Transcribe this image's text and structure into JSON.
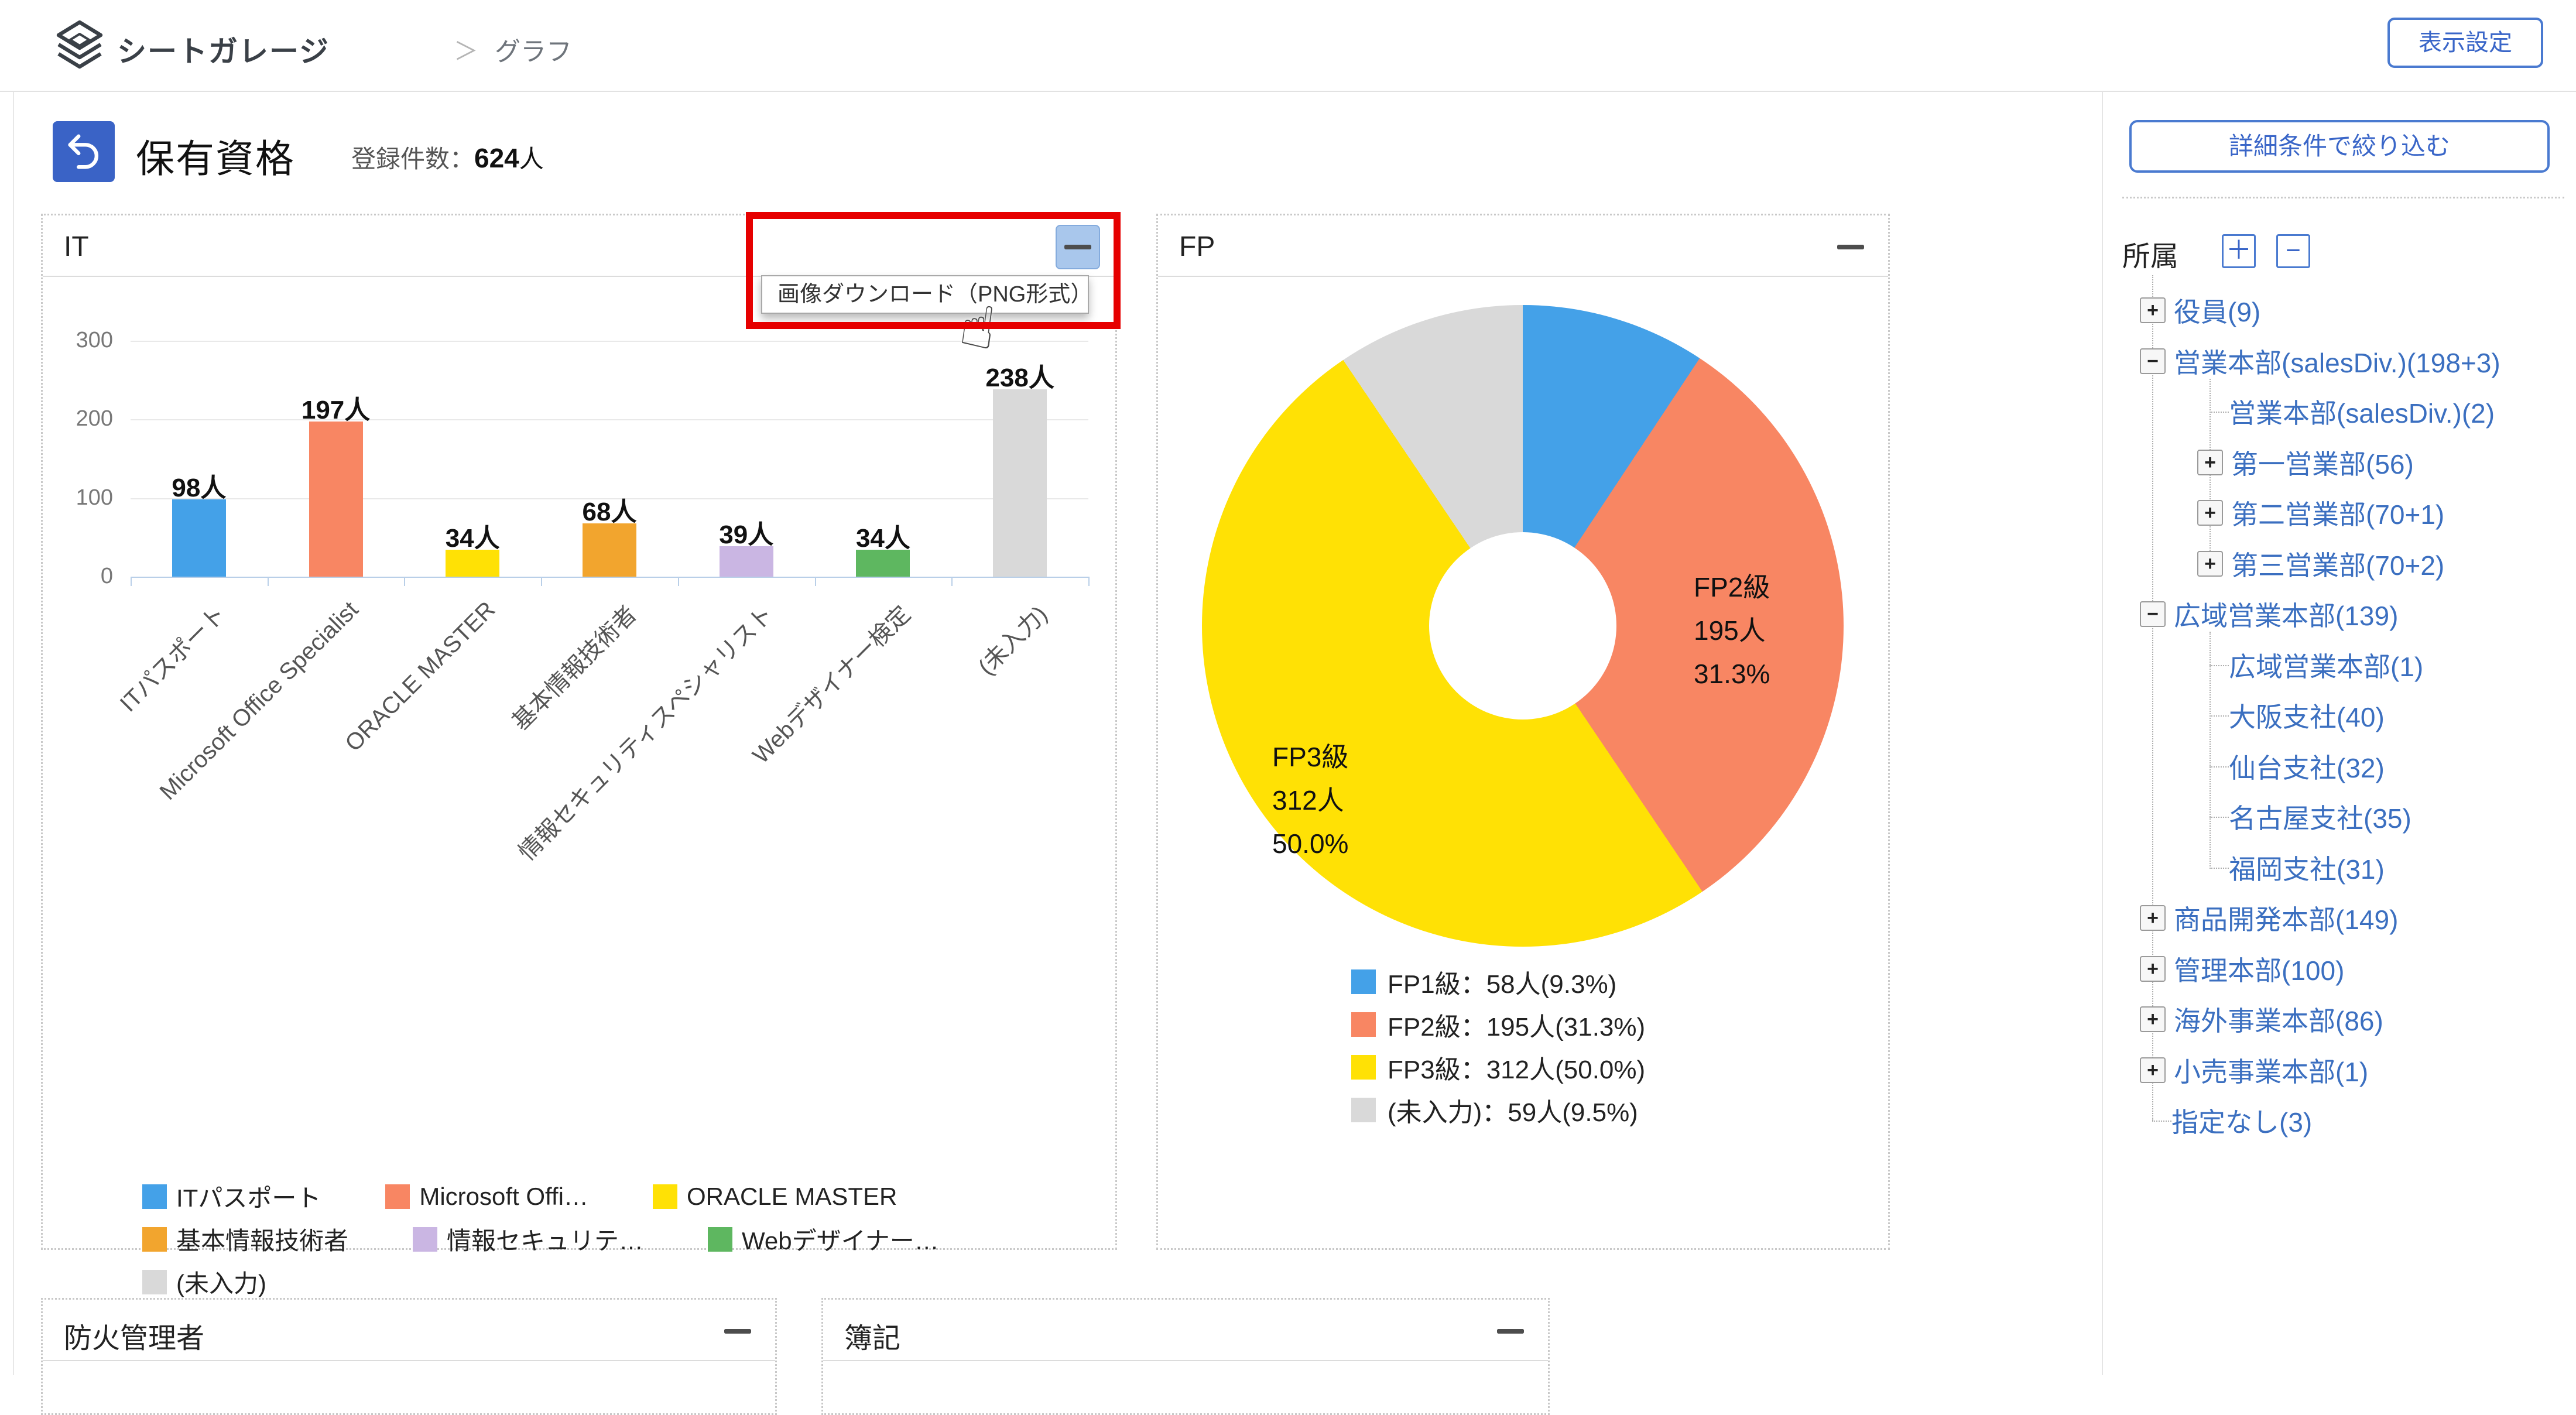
{
  "colors": {
    "accent_blue": "#3a66c8",
    "button_border": "#4a7ad0",
    "back_button_bg": "#3a63c6",
    "annotation_red": "#e60000",
    "menu_highlight_bg": "#a9c7ec",
    "link_blue": "#3b6fc0",
    "bar_palette": [
      "#44a1e8",
      "#f88663",
      "#ffe105",
      "#f2a52e",
      "#cab6e3",
      "#5eb760",
      "#d9d9d9"
    ],
    "donut_palette": [
      "#44a1e8",
      "#f88663",
      "#ffe105",
      "#d9d9d9"
    ]
  },
  "header": {
    "brand": "シートガレージ",
    "breadcrumb_separator": "＞",
    "breadcrumb_page": "グラフ",
    "settings_button": "表示設定"
  },
  "title_bar": {
    "title": "保有資格",
    "count_label": "登録件数：",
    "count_value": "624",
    "count_unit": "人"
  },
  "download_menu": {
    "label": "画像ダウンロード（PNG形式）"
  },
  "chart_data": [
    {
      "type": "bar",
      "title": "IT",
      "categories": [
        "ITパスポート",
        "Microsoft Office Specialist",
        "ORACLE MASTER",
        "基本情報技術者",
        "情報セキュリティスペシャリスト",
        "Webデザイナー検定",
        "(未入力)"
      ],
      "values": [
        98,
        197,
        34,
        68,
        39,
        34,
        238
      ],
      "unit": "人",
      "yticks": [
        0,
        100,
        200,
        300
      ],
      "ylim": [
        0,
        320
      ],
      "grid": true,
      "legend_position": "bottom",
      "legend_labels": [
        "ITパスポート",
        "Microsoft Offi…",
        "ORACLE MASTER",
        "基本情報技術者",
        "情報セキュリテ…",
        "Webデザイナー…",
        "(未入力)"
      ],
      "legend_rows": [
        [
          0,
          1,
          2
        ],
        [
          3,
          4,
          5
        ],
        [
          6
        ]
      ]
    },
    {
      "type": "pie",
      "title": "FP",
      "labels": [
        "FP1級",
        "FP2級",
        "FP3級",
        "(未入力)"
      ],
      "values": [
        58,
        195,
        312,
        59
      ],
      "percents": [
        "9.3%",
        "31.3%",
        "50.0%",
        "9.5%"
      ],
      "unit": "人",
      "slice_labels": [
        {
          "lines": [
            "FP2級",
            "195人",
            "31.3%"
          ]
        },
        {
          "lines": [
            "FP3級",
            "312人",
            "50.0%"
          ]
        }
      ],
      "legend": [
        "FP1級：58人(9.3%)",
        "FP2級：195人(31.3%)",
        "FP3級：312人(50.0%)",
        "(未入力)：59人(9.5%)"
      ],
      "legend_position": "bottom"
    }
  ],
  "bottom_panels": [
    {
      "title": "防火管理者"
    },
    {
      "title": "簿記"
    }
  ],
  "sidebar": {
    "filter_button": "詳細条件で絞り込む",
    "section_label": "所属",
    "expand_all_button": "＋",
    "collapse_all_button": "−",
    "tree": [
      {
        "depth": 1,
        "box": "plus",
        "label": "役員(9)"
      },
      {
        "depth": 1,
        "box": "minus",
        "label": "営業本部(salesDiv.)(198+3)"
      },
      {
        "depth": 2,
        "box": "none",
        "label": "営業本部(salesDiv.)(2)"
      },
      {
        "depth": 2,
        "box": "plus",
        "label": "第一営業部(56)"
      },
      {
        "depth": 2,
        "box": "plus",
        "label": "第二営業部(70+1)"
      },
      {
        "depth": 2,
        "box": "plus",
        "label": "第三営業部(70+2)"
      },
      {
        "depth": 1,
        "box": "minus",
        "label": "広域営業本部(139)"
      },
      {
        "depth": 2,
        "box": "none",
        "label": "広域営業本部(1)"
      },
      {
        "depth": 2,
        "box": "none",
        "label": "大阪支社(40)"
      },
      {
        "depth": 2,
        "box": "none",
        "label": "仙台支社(32)"
      },
      {
        "depth": 2,
        "box": "none",
        "label": "名古屋支社(35)"
      },
      {
        "depth": 2,
        "box": "none",
        "label": "福岡支社(31)"
      },
      {
        "depth": 1,
        "box": "plus",
        "label": "商品開発本部(149)"
      },
      {
        "depth": 1,
        "box": "plus",
        "label": "管理本部(100)"
      },
      {
        "depth": 1,
        "box": "plus",
        "label": "海外事業本部(86)"
      },
      {
        "depth": 1,
        "box": "plus",
        "label": "小売事業本部(1)"
      },
      {
        "depth": 1,
        "box": "none",
        "label": "指定なし(3)"
      }
    ]
  }
}
